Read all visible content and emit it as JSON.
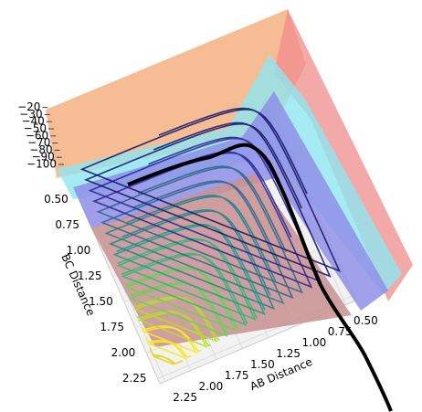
{
  "chart_data": {
    "type": "surface3d",
    "xlabel": "AB Distance",
    "ylabel": "BC Distance",
    "xlim": [
      0.4,
      2.3
    ],
    "ylim": [
      0.4,
      2.3
    ],
    "zlim": [
      -100,
      -20
    ],
    "xticks": [
      {
        "value": 0.5,
        "label": "0.50"
      },
      {
        "value": 0.75,
        "label": "0.75"
      },
      {
        "value": 1.0,
        "label": "1.00"
      },
      {
        "value": 1.25,
        "label": "1.25"
      },
      {
        "value": 1.5,
        "label": "1.50"
      },
      {
        "value": 1.75,
        "label": "1.75"
      },
      {
        "value": 2.0,
        "label": "2.00"
      },
      {
        "value": 2.25,
        "label": "2.25"
      }
    ],
    "yticks": [
      {
        "value": 0.5,
        "label": "0.50"
      },
      {
        "value": 0.75,
        "label": "0.75"
      },
      {
        "value": 1.0,
        "label": "1.00"
      },
      {
        "value": 1.25,
        "label": "1.25"
      },
      {
        "value": 1.5,
        "label": "1.50"
      },
      {
        "value": 1.75,
        "label": "1.75"
      },
      {
        "value": 2.0,
        "label": "2.00"
      },
      {
        "value": 2.25,
        "label": "2.25"
      }
    ],
    "zticks": [
      {
        "value": -20,
        "label": "−20"
      },
      {
        "value": -30,
        "label": "−30"
      },
      {
        "value": -40,
        "label": "−40"
      },
      {
        "value": -50,
        "label": "−50"
      },
      {
        "value": -60,
        "label": "−60"
      },
      {
        "value": -70,
        "label": "−70"
      },
      {
        "value": -80,
        "label": "−80"
      },
      {
        "value": -90,
        "label": "−90"
      },
      {
        "value": -100,
        "label": "−100"
      }
    ],
    "grid": true
  }
}
